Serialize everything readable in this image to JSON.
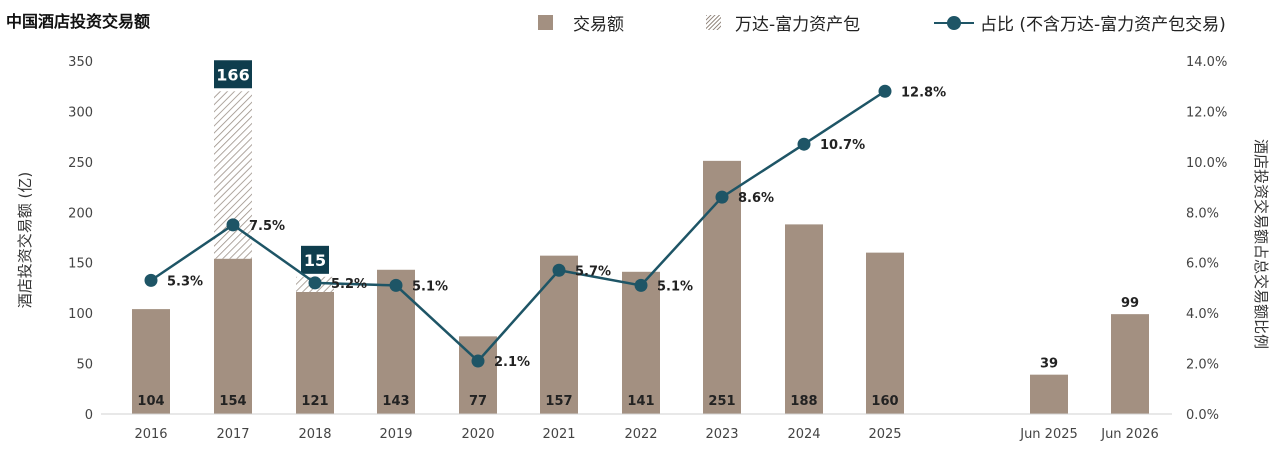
{
  "chart_data": {
    "type": "bar",
    "title": "中国酒店投资交易额",
    "categories": [
      "2016",
      "2017",
      "2018",
      "2019",
      "2020",
      "2021",
      "2022",
      "2023",
      "2024",
      "2025",
      "Jun 2025",
      "Jun 2026"
    ],
    "series": [
      {
        "name": "交易额",
        "type": "bar",
        "color": "#a39081",
        "values": [
          104,
          154,
          121,
          143,
          77,
          157,
          141,
          251,
          188,
          160,
          39,
          99
        ]
      },
      {
        "name": "万达-富力资产包",
        "type": "bar-stacked-hatched",
        "color": "#b4aba3",
        "values": [
          0,
          166,
          15,
          0,
          0,
          0,
          0,
          0,
          0,
          0,
          0,
          0
        ],
        "labels": [
          "",
          "166",
          "15",
          "",
          "",
          "",
          "",
          "",
          "",
          "",
          "",
          ""
        ]
      },
      {
        "name": "占比 (不含万达-富力资产包交易)",
        "type": "line",
        "axis": "right",
        "color": "#1e5566",
        "values": [
          5.3,
          7.5,
          5.2,
          5.1,
          2.1,
          5.7,
          5.1,
          8.6,
          10.7,
          12.8,
          null,
          null
        ],
        "labels": [
          "5.3%",
          "7.5%",
          "5.2%",
          "5.1%",
          "2.1%",
          "5.7%",
          "5.1%",
          "8.6%",
          "10.7%",
          "12.8%",
          "",
          ""
        ]
      }
    ],
    "ylabel": "酒店投资交易额 (亿)",
    "y2label": "酒店投资交易额占总交易额比例",
    "ylim": [
      0,
      350
    ],
    "yticks": [
      "0",
      "50",
      "100",
      "150",
      "200",
      "250",
      "300",
      "350"
    ],
    "y2lim": [
      0,
      14
    ],
    "y2ticks": [
      "0.0%",
      "2.0%",
      "4.0%",
      "6.0%",
      "8.0%",
      "10.0%",
      "12.0%",
      "14.0%"
    ],
    "legend_position": "top-right",
    "grid": false
  }
}
